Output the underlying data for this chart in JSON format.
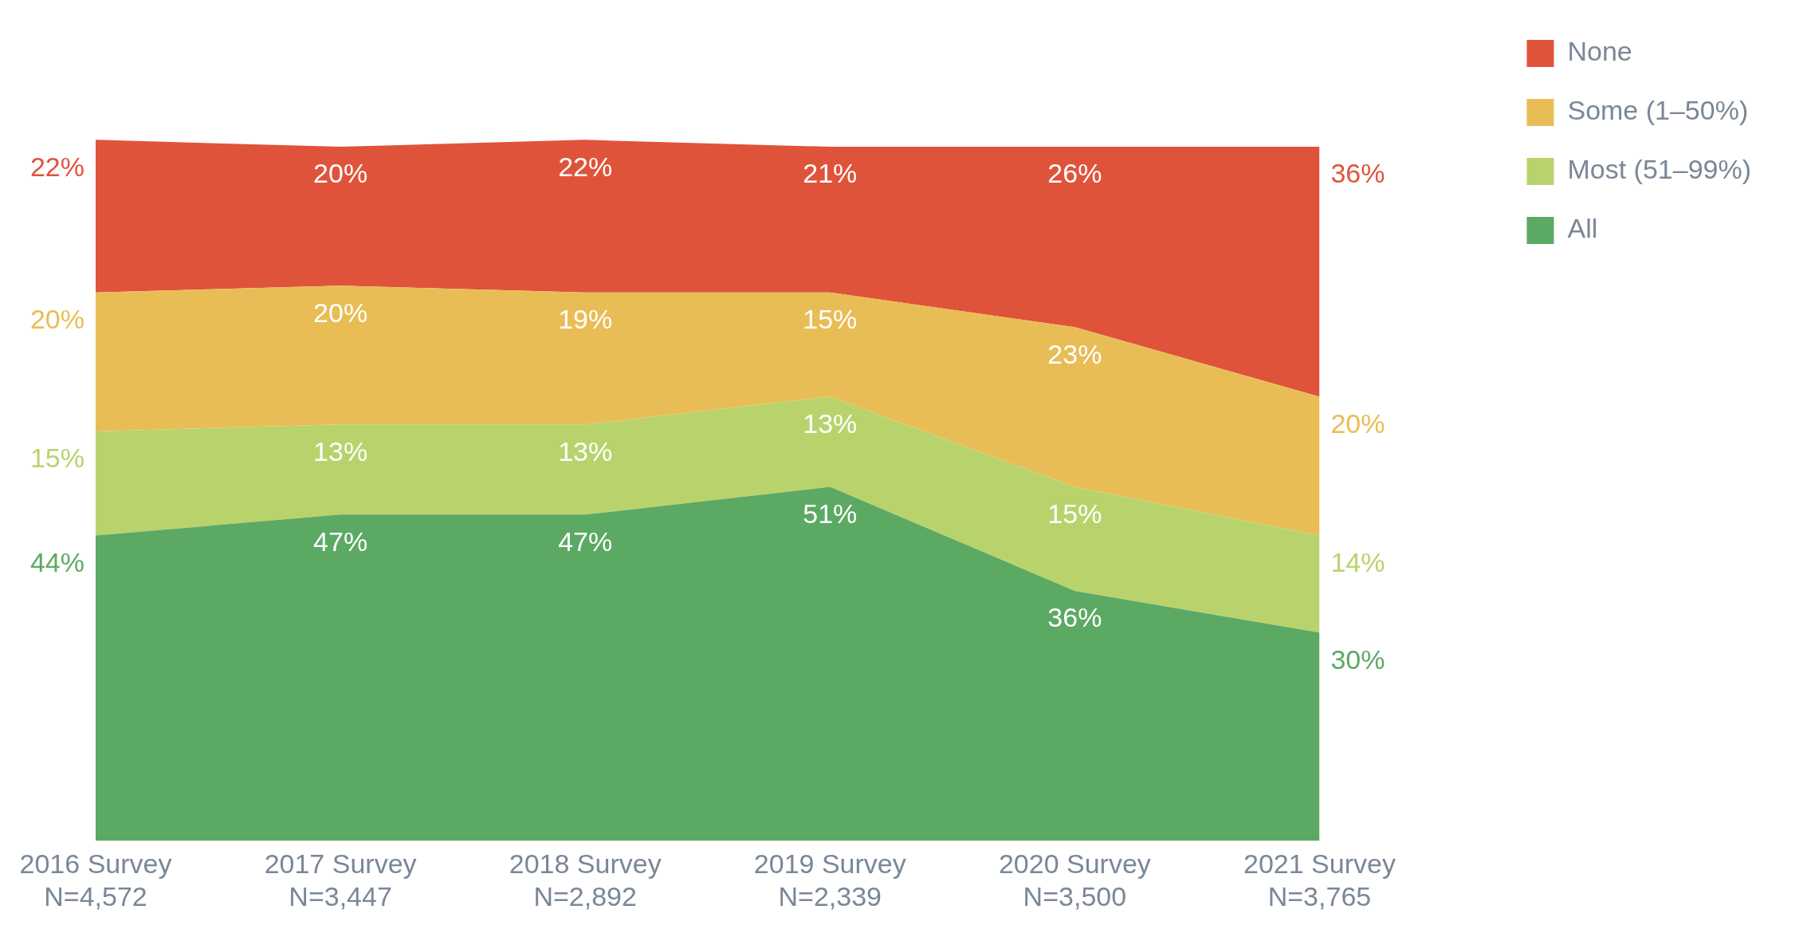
{
  "chart_data": {
    "type": "area",
    "stacked": true,
    "categories": [
      "2016 Survey\nN=4,572",
      "2017 Survey\nN=3,447",
      "2018 Survey\nN=2,892",
      "2019 Survey\nN=2,339",
      "2020 Survey\nN=3,500",
      "2021 Survey\nN=3,765"
    ],
    "series": [
      {
        "name": "All",
        "color": "#5ca963",
        "values": [
          44,
          47,
          47,
          51,
          36,
          30
        ],
        "value_labels": [
          "44%",
          "47%",
          "47%",
          "51%",
          "36%",
          "30%"
        ]
      },
      {
        "name": "Most (51–99%)",
        "color": "#b9d36c",
        "values": [
          15,
          13,
          13,
          13,
          15,
          14
        ],
        "value_labels": [
          "15%",
          "13%",
          "13%",
          "13%",
          "15%",
          "14%"
        ]
      },
      {
        "name": "Some (1–50%)",
        "color": "#e9bd55",
        "values": [
          20,
          20,
          19,
          15,
          23,
          20
        ],
        "value_labels": [
          "20%",
          "20%",
          "19%",
          "15%",
          "23%",
          "20%"
        ]
      },
      {
        "name": "None",
        "color": "#e0533b",
        "values": [
          22,
          20,
          22,
          21,
          26,
          36
        ],
        "value_labels": [
          "22%",
          "20%",
          "22%",
          "21%",
          "26%",
          "36%"
        ]
      }
    ],
    "grid": false,
    "legend": "top right"
  }
}
